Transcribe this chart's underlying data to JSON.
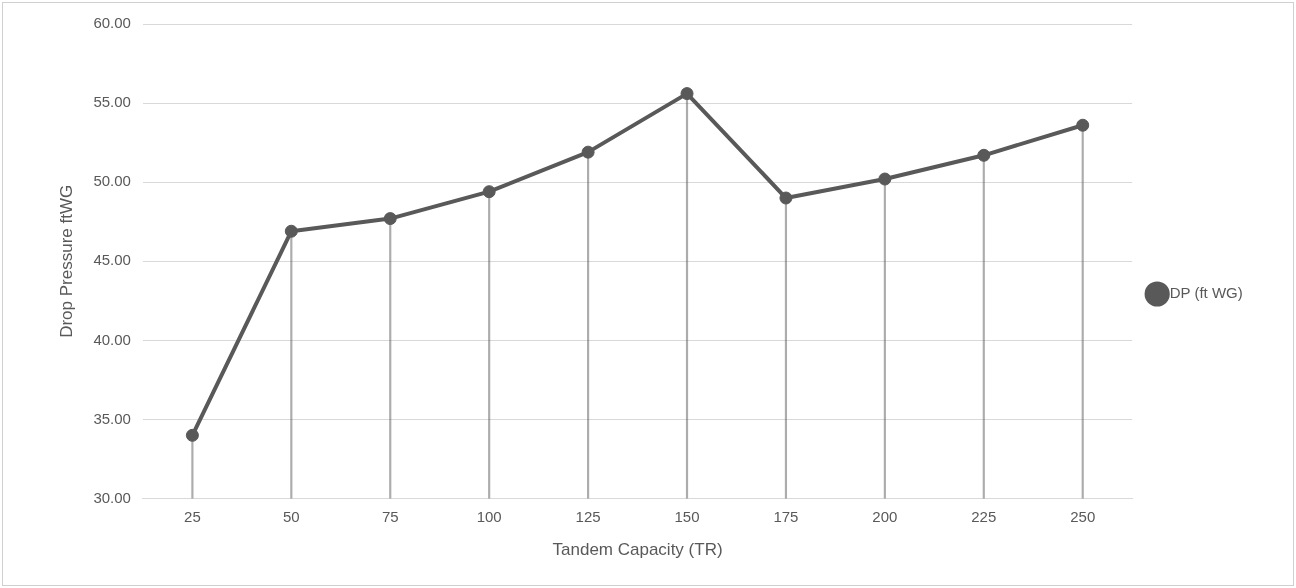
{
  "chart_data": {
    "type": "line",
    "xlabel": "Tandem Capacity (TR)",
    "ylabel": "Drop Pressure ftWG",
    "categories": [
      "25",
      "50",
      "75",
      "100",
      "125",
      "150",
      "175",
      "200",
      "225",
      "250"
    ],
    "series": [
      {
        "name": "DP (ft WG)",
        "color": "#595959",
        "marker": "none",
        "values": [
          34.0,
          46.9,
          47.7,
          49.4,
          51.9,
          55.6,
          49.0,
          50.2,
          51.7,
          53.6
        ]
      },
      {
        "type": "lollipop",
        "color": "#595959",
        "values": [
          34.0,
          46.9,
          47.7,
          49.4,
          51.9,
          55.6,
          49.0,
          50.2,
          51.7,
          53.6
        ]
      }
    ],
    "ylim": [
      30,
      60
    ],
    "yticks": [
      {
        "value": 30,
        "label": "30.00"
      },
      {
        "value": 35,
        "label": "35.00"
      },
      {
        "value": 40,
        "label": "40.00"
      },
      {
        "value": 45,
        "label": "45.00"
      },
      {
        "value": 50,
        "label": "50.00"
      },
      {
        "value": 55,
        "label": "55.00"
      },
      {
        "value": 60,
        "label": "60.00"
      }
    ],
    "grid": "y",
    "legend": "right",
    "marker": "circle",
    "line_style": "solid"
  }
}
